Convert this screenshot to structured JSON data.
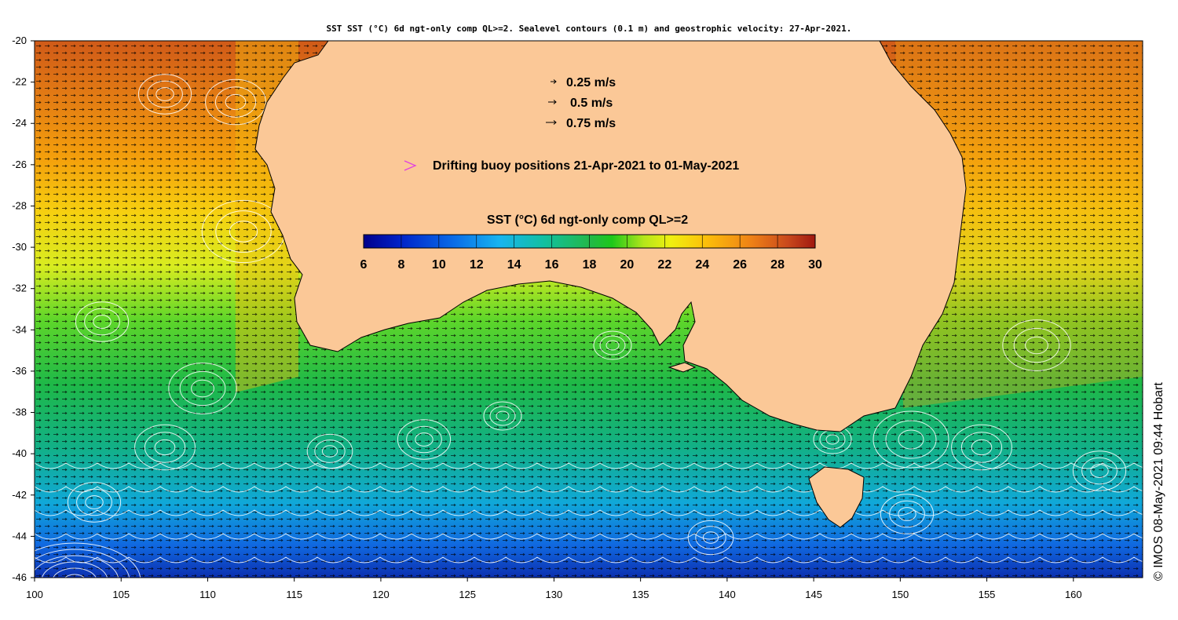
{
  "title": "SST SST (°C) 6d ngt-only comp QL>=2. Sealevel contours (0.1 m) and geostrophic velocity: 27-Apr-2021.",
  "axes": {
    "lon_range": [
      100,
      164
    ],
    "lat_range": [
      -46,
      -20
    ],
    "x_ticks": [
      "100",
      "105",
      "110",
      "115",
      "120",
      "125",
      "130",
      "135",
      "140",
      "145",
      "150",
      "155",
      "160"
    ],
    "y_ticks": [
      "-20",
      "-22",
      "-24",
      "-26",
      "-28",
      "-30",
      "-32",
      "-34",
      "-36",
      "-38",
      "-40",
      "-42",
      "-44",
      "-46"
    ]
  },
  "velocity_legend": [
    {
      "label": "0.25 m/s",
      "speed": 0.25
    },
    {
      "label": "0.5 m/s",
      "speed": 0.5
    },
    {
      "label": "0.75 m/s",
      "speed": 0.75
    }
  ],
  "buoy_legend": {
    "label": "Drifting buoy positions 21-Apr-2021 to 01-May-2021",
    "color": "#e040e0"
  },
  "colorbar": {
    "title": "SST (°C) 6d ngt-only comp QL>=2",
    "min": 6,
    "max": 30,
    "ticks": [
      "6",
      "8",
      "10",
      "12",
      "14",
      "16",
      "18",
      "20",
      "22",
      "24",
      "26",
      "28",
      "30"
    ]
  },
  "credit": "© IMOS 08-May-2021 09:44 Hobart",
  "colors": {
    "land": "#fbc897",
    "coast": "#000000",
    "contour": "#ffffff",
    "arrow": "#000000"
  }
}
